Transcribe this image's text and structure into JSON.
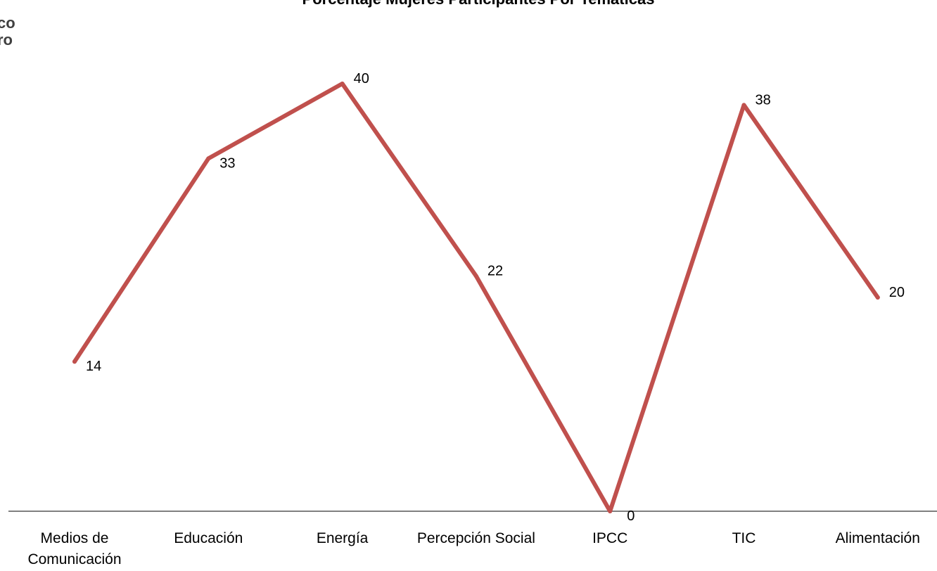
{
  "side_label": {
    "line1": "co",
    "line2": "ro"
  },
  "chart_data": {
    "type": "line",
    "title": "Porcentaje Mujeres Participantes Por Temáticas",
    "xlabel": "",
    "ylabel": "",
    "categories": [
      "Medios de Comunicación",
      "Educación",
      "Energía",
      "Percepción Social",
      "IPCC",
      "TIC",
      "Alimentación"
    ],
    "category_lines": [
      [
        "Medios de",
        "Comunicación"
      ],
      [
        "Educación"
      ],
      [
        "Energía"
      ],
      [
        "Percepción Social"
      ],
      [
        "IPCC"
      ],
      [
        "TIC"
      ],
      [
        "Alimentación"
      ]
    ],
    "series": [
      {
        "values": [
          14,
          33,
          40,
          22,
          0,
          38,
          20
        ],
        "color": "#C0504D"
      }
    ],
    "ylim": [
      0,
      45
    ],
    "grid": false,
    "legend": "none",
    "data_labels": true
  }
}
